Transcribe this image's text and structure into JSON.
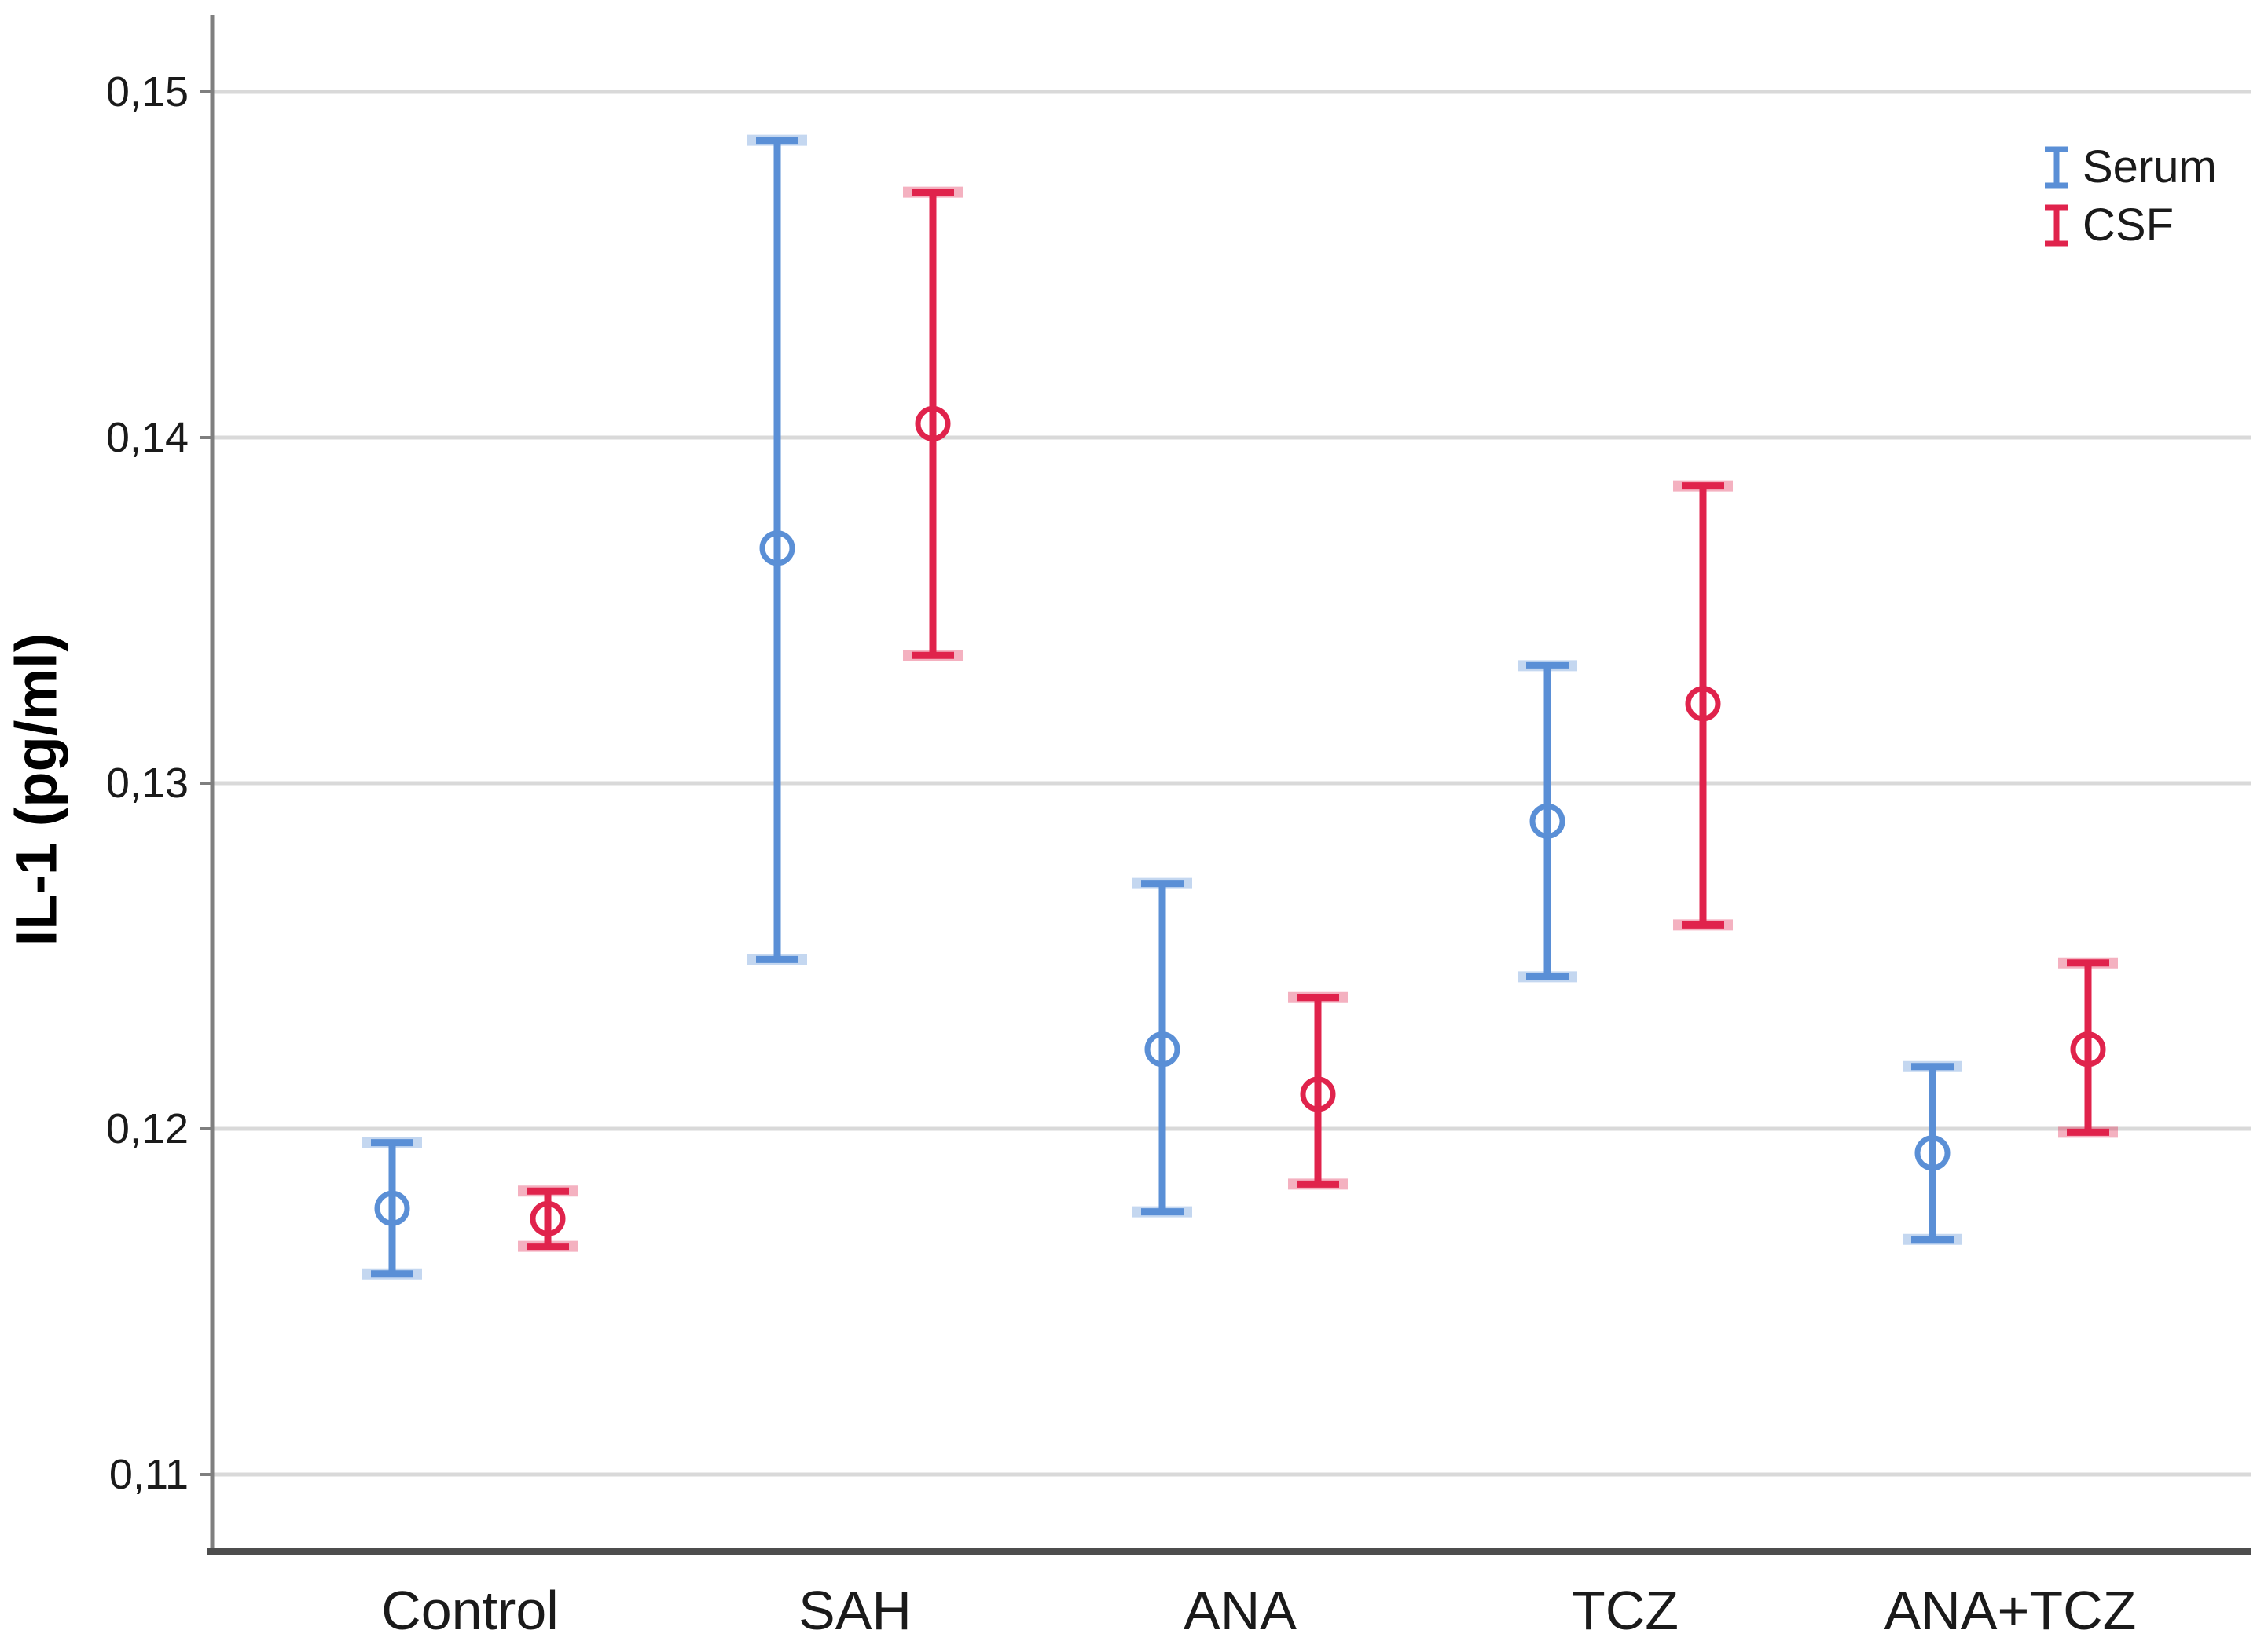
{
  "chart_data": {
    "type": "errorbar",
    "title": "",
    "ylabel": "IL-1 (pg/ml)",
    "xlabel": "",
    "categories": [
      "Control",
      "SAH",
      "ANA",
      "TCZ",
      "ANA+TCZ"
    ],
    "yticks": [
      {
        "value": 0.15,
        "label": "0,15"
      },
      {
        "value": 0.14,
        "label": "0,14"
      },
      {
        "value": 0.13,
        "label": "0,13"
      },
      {
        "value": 0.12,
        "label": "0,12"
      },
      {
        "value": 0.11,
        "label": "0,11"
      }
    ],
    "ylim": [
      0.108,
      0.152
    ],
    "decimal_separator": ",",
    "grid": "horizontal",
    "legend": {
      "position": "top-right",
      "items": [
        "Serum",
        "CSF"
      ]
    },
    "series": [
      {
        "name": "Serum",
        "color": "#5A8FD6",
        "marker": "open-circle",
        "points": [
          {
            "category": "Control",
            "mean": 0.1177,
            "lo": 0.1158,
            "hi": 0.1196
          },
          {
            "category": "SAH",
            "mean": 0.1368,
            "lo": 0.1249,
            "hi": 0.1486
          },
          {
            "category": "ANA",
            "mean": 0.1223,
            "lo": 0.1176,
            "hi": 0.1271
          },
          {
            "category": "TCZ",
            "mean": 0.1289,
            "lo": 0.1244,
            "hi": 0.1334
          },
          {
            "category": "ANA+TCZ",
            "mean": 0.1193,
            "lo": 0.1168,
            "hi": 0.1218
          }
        ]
      },
      {
        "name": "CSF",
        "color": "#E0234C",
        "marker": "open-circle",
        "points": [
          {
            "category": "Control",
            "mean": 0.1174,
            "lo": 0.1166,
            "hi": 0.1182
          },
          {
            "category": "SAH",
            "mean": 0.1404,
            "lo": 0.1337,
            "hi": 0.1471
          },
          {
            "category": "ANA",
            "mean": 0.121,
            "lo": 0.1184,
            "hi": 0.1238
          },
          {
            "category": "TCZ",
            "mean": 0.1323,
            "lo": 0.1259,
            "hi": 0.1386
          },
          {
            "category": "ANA+TCZ",
            "mean": 0.1223,
            "lo": 0.1199,
            "hi": 0.1248
          }
        ]
      }
    ],
    "axis_colors": {
      "axis_line": "#7F7F7F",
      "bottom_axis": "#4D4D4D",
      "gridline": "#D9D9D9",
      "text": "#1A1A1A"
    }
  }
}
